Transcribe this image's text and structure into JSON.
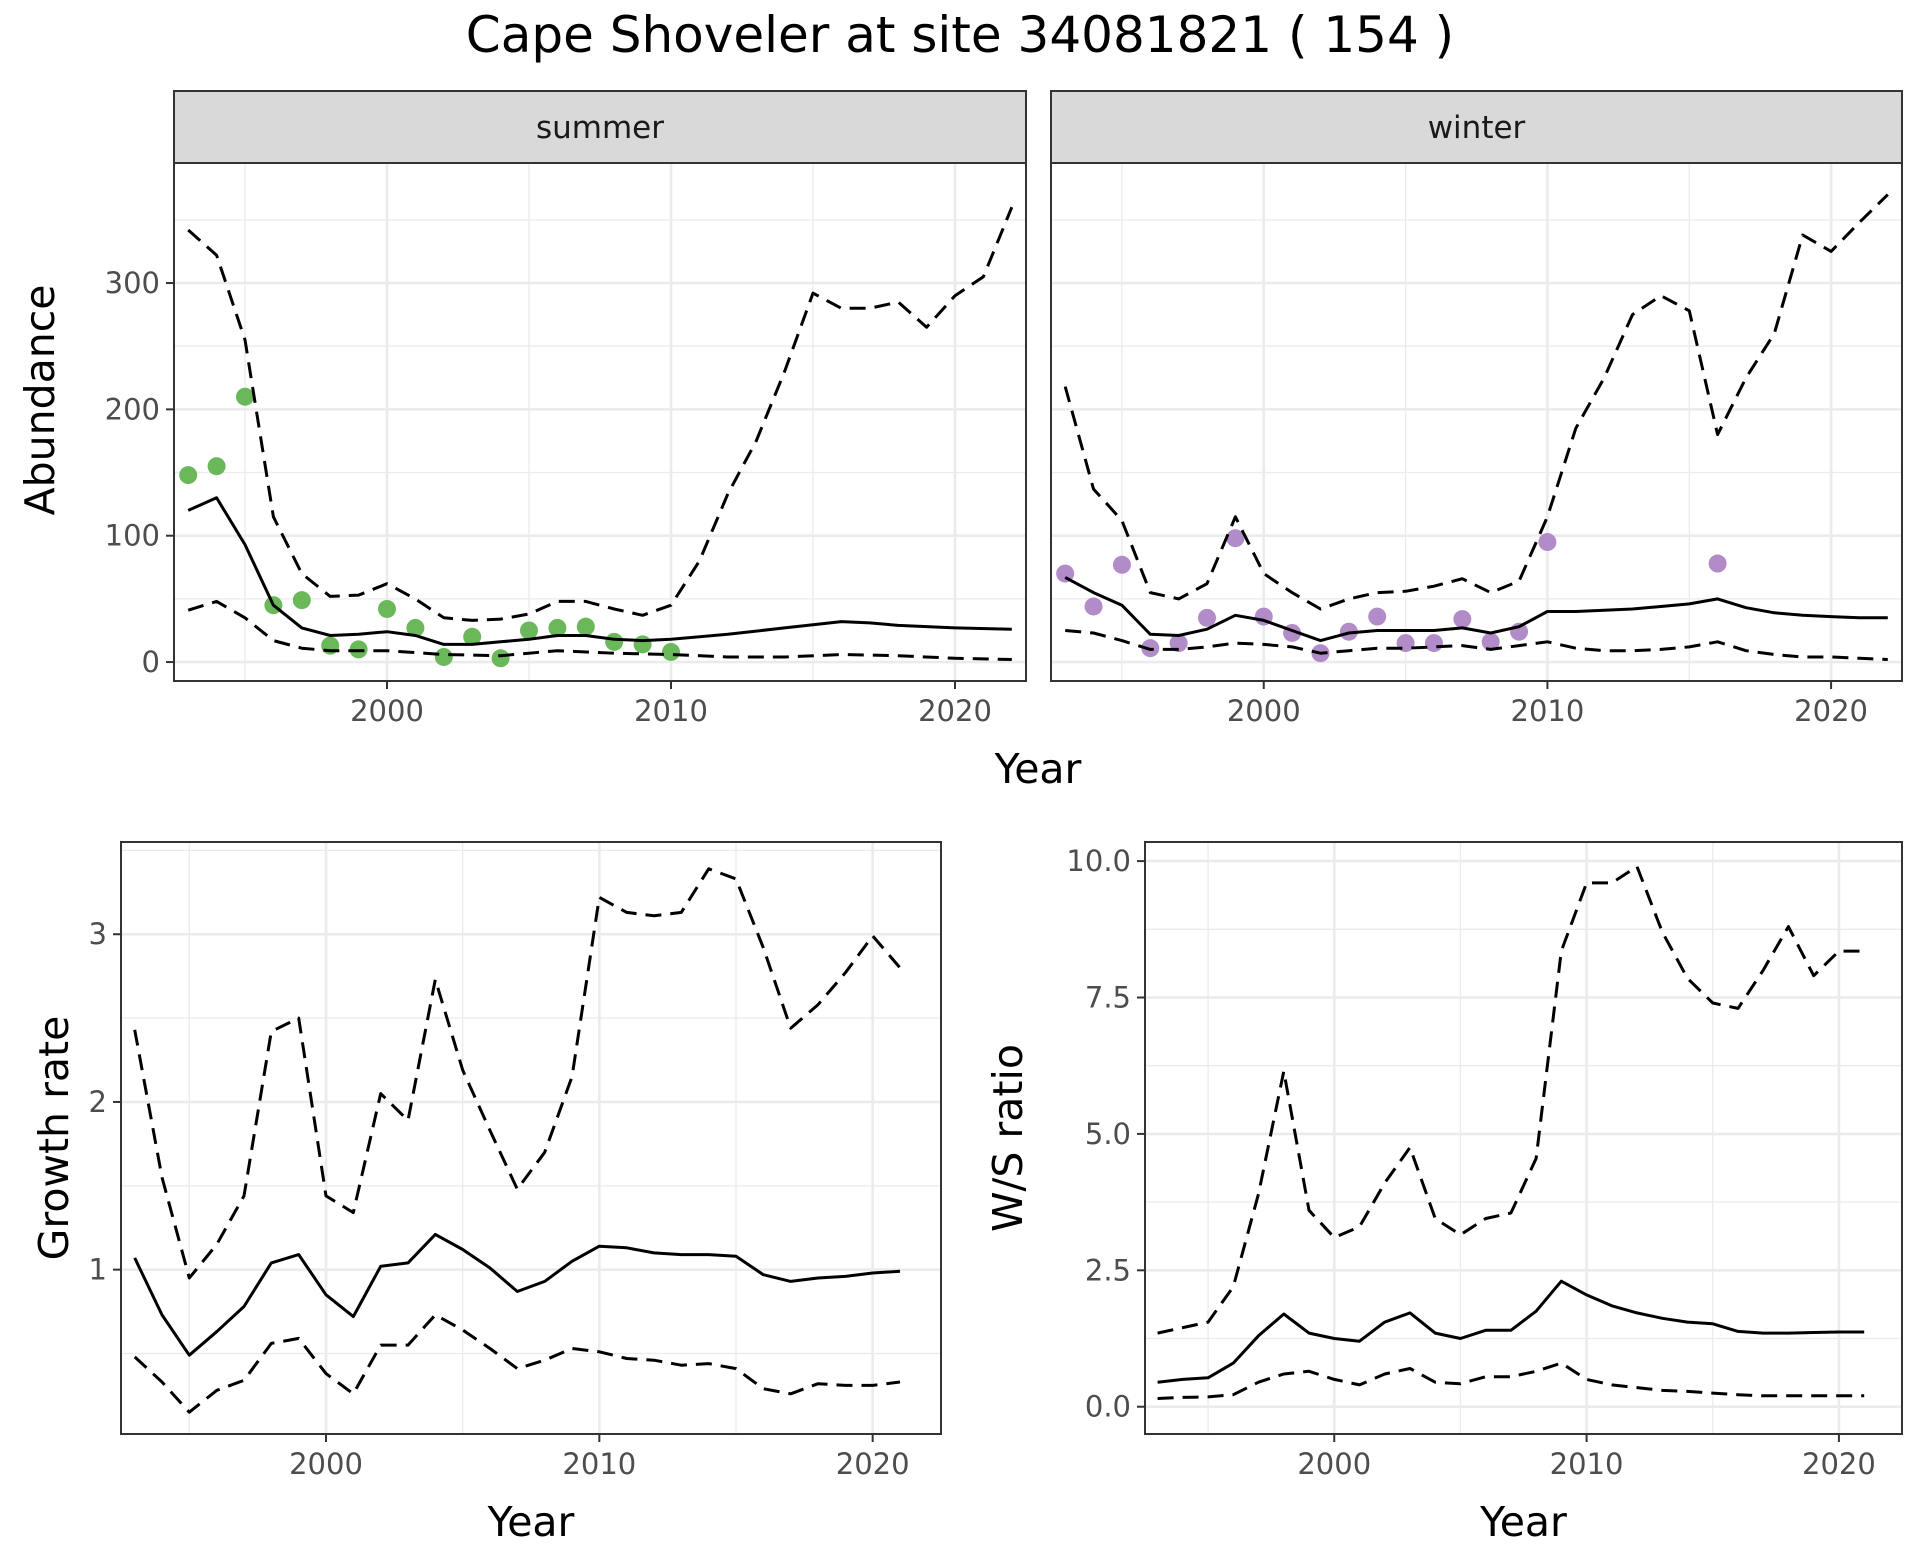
{
  "title": "Cape Shoveler at site 34081821 ( 154 )",
  "colors": {
    "summer_points": "#6ab85a",
    "winter_points": "#b28cc8",
    "line": "#000000",
    "strip_bg": "#d9d9d9",
    "grid": "#ebebeb"
  },
  "chart_data": [
    {
      "type": "scatter",
      "panel": "abundance",
      "facets": [
        "summer",
        "winter"
      ],
      "xlabel": "Year",
      "ylabel": "Abundance",
      "xlim": [
        1992.5,
        2022.5
      ],
      "ylim": [
        -15,
        395
      ],
      "xticks": [
        2000,
        2010,
        2020
      ],
      "yticks": [
        0,
        100,
        200,
        300
      ],
      "grid": true,
      "series": [
        {
          "facet": "summer",
          "kind": "points",
          "x": [
            1993,
            1994,
            1995,
            1996,
            1997,
            1998,
            1999,
            2000,
            2001,
            2002,
            2003,
            2004,
            2005,
            2006,
            2007,
            2008,
            2009,
            2010
          ],
          "y": [
            148,
            155,
            210,
            45,
            49,
            13,
            10,
            42,
            27,
            4,
            20,
            3,
            25,
            27,
            28,
            16,
            14,
            8
          ]
        },
        {
          "facet": "summer",
          "kind": "mean",
          "x": [
            1993,
            1994,
            1995,
            1996,
            1997,
            1998,
            1999,
            2000,
            2001,
            2002,
            2003,
            2004,
            2005,
            2006,
            2007,
            2008,
            2009,
            2010,
            2012,
            2014,
            2016,
            2017,
            2018,
            2020,
            2022
          ],
          "y": [
            120,
            130,
            93,
            45,
            27,
            21,
            22,
            24,
            21,
            14,
            14,
            16,
            18,
            21,
            21,
            18,
            17,
            18,
            22,
            27,
            32,
            31,
            29,
            27,
            26
          ]
        },
        {
          "facet": "summer",
          "kind": "upper",
          "x": [
            1993,
            1994,
            1995,
            1996,
            1997,
            1998,
            1999,
            2000,
            2001,
            2002,
            2003,
            2004,
            2005,
            2006,
            2007,
            2008,
            2009,
            2010,
            2011,
            2012,
            2013,
            2014,
            2015,
            2016,
            2017,
            2018,
            2019,
            2020,
            2021,
            2022
          ],
          "y": [
            342,
            322,
            255,
            115,
            70,
            52,
            53,
            62,
            50,
            35,
            33,
            34,
            38,
            48,
            48,
            42,
            37,
            45,
            80,
            133,
            175,
            230,
            292,
            280,
            280,
            285,
            265,
            290,
            305,
            360
          ]
        },
        {
          "facet": "summer",
          "kind": "lower",
          "x": [
            1993,
            1994,
            1995,
            1996,
            1997,
            1998,
            1999,
            2000,
            2002,
            2004,
            2006,
            2008,
            2010,
            2012,
            2014,
            2016,
            2018,
            2020,
            2022
          ],
          "y": [
            41,
            48,
            35,
            17,
            11,
            9,
            9,
            9,
            6,
            5,
            9,
            7,
            6,
            4,
            4,
            6,
            5,
            3,
            2
          ]
        },
        {
          "facet": "winter",
          "kind": "points",
          "x": [
            1993,
            1994,
            1995,
            1996,
            1997,
            1998,
            1999,
            2000,
            2001,
            2002,
            2003,
            2004,
            2005,
            2006,
            2007,
            2008,
            2009,
            2010,
            2016
          ],
          "y": [
            70,
            44,
            77,
            11,
            15,
            35,
            98,
            36,
            23,
            7,
            24,
            36,
            15,
            15,
            34,
            16,
            24,
            95,
            78
          ]
        },
        {
          "facet": "winter",
          "kind": "mean",
          "x": [
            1993,
            1994,
            1995,
            1996,
            1997,
            1998,
            1999,
            2000,
            2001,
            2002,
            2003,
            2004,
            2005,
            2006,
            2007,
            2008,
            2009,
            2010,
            2011,
            2012,
            2013,
            2014,
            2015,
            2016,
            2017,
            2018,
            2019,
            2020,
            2021,
            2022
          ],
          "y": [
            67,
            55,
            45,
            22,
            21,
            26,
            37,
            33,
            25,
            17,
            23,
            25,
            25,
            25,
            27,
            23,
            28,
            40,
            40,
            41,
            42,
            44,
            46,
            50,
            43,
            39,
            37,
            36,
            35,
            35
          ]
        },
        {
          "facet": "winter",
          "kind": "upper",
          "x": [
            1993,
            1994,
            1995,
            1996,
            1997,
            1998,
            1999,
            2000,
            2001,
            2002,
            2003,
            2004,
            2005,
            2006,
            2007,
            2008,
            2009,
            2010,
            2011,
            2012,
            2013,
            2014,
            2015,
            2016,
            2017,
            2018,
            2019,
            2020,
            2021,
            2022
          ],
          "y": [
            218,
            137,
            112,
            55,
            50,
            62,
            115,
            70,
            55,
            42,
            50,
            55,
            56,
            60,
            66,
            55,
            64,
            115,
            185,
            225,
            275,
            290,
            278,
            180,
            225,
            260,
            338,
            325,
            348,
            370
          ]
        },
        {
          "facet": "winter",
          "kind": "lower",
          "x": [
            1993,
            1994,
            1995,
            1996,
            1997,
            1998,
            1999,
            2000,
            2001,
            2002,
            2003,
            2004,
            2005,
            2006,
            2007,
            2008,
            2009,
            2010,
            2011,
            2012,
            2013,
            2014,
            2015,
            2016,
            2017,
            2018,
            2019,
            2020,
            2021,
            2022
          ],
          "y": [
            25,
            23,
            17,
            10,
            10,
            12,
            15,
            14,
            12,
            7,
            9,
            11,
            11,
            12,
            13,
            10,
            13,
            16,
            11,
            9,
            9,
            10,
            12,
            16,
            9,
            6,
            4,
            4,
            3,
            2
          ]
        }
      ]
    },
    {
      "type": "line",
      "panel": "growth",
      "xlabel": "Year",
      "ylabel": "Growth rate",
      "xlim": [
        1992.5,
        2022.5
      ],
      "ylim": [
        0.02,
        3.55
      ],
      "xticks": [
        2000,
        2010,
        2020
      ],
      "yticks": [
        1,
        2,
        3
      ],
      "grid": true,
      "series": [
        {
          "kind": "mean",
          "x": [
            1993,
            1994,
            1995,
            1996,
            1997,
            1998,
            1999,
            2000,
            2001,
            2002,
            2003,
            2004,
            2005,
            2006,
            2007,
            2008,
            2009,
            2010,
            2011,
            2012,
            2013,
            2014,
            2015,
            2016,
            2017,
            2018,
            2019,
            2020,
            2021
          ],
          "y": [
            1.07,
            0.73,
            0.49,
            0.63,
            0.78,
            1.04,
            1.09,
            0.85,
            0.72,
            1.02,
            1.04,
            1.21,
            1.12,
            1.01,
            0.87,
            0.93,
            1.05,
            1.14,
            1.13,
            1.1,
            1.09,
            1.09,
            1.08,
            0.97,
            0.93,
            0.95,
            0.96,
            0.98,
            0.99
          ]
        },
        {
          "kind": "upper",
          "x": [
            1993,
            1994,
            1995,
            1996,
            1997,
            1998,
            1999,
            2000,
            2001,
            2002,
            2003,
            2004,
            2005,
            2006,
            2007,
            2008,
            2009,
            2010,
            2011,
            2012,
            2013,
            2014,
            2015,
            2016,
            2017,
            2018,
            2019,
            2020,
            2021
          ],
          "y": [
            2.43,
            1.55,
            0.95,
            1.15,
            1.44,
            2.42,
            2.5,
            1.44,
            1.34,
            2.05,
            1.89,
            2.73,
            2.19,
            1.83,
            1.48,
            1.7,
            2.15,
            3.22,
            3.13,
            3.11,
            3.13,
            3.39,
            3.33,
            2.92,
            2.44,
            2.58,
            2.77,
            2.99,
            2.8
          ]
        },
        {
          "kind": "lower",
          "x": [
            1993,
            1994,
            1995,
            1996,
            1997,
            1998,
            1999,
            2000,
            2001,
            2002,
            2003,
            2004,
            2005,
            2006,
            2007,
            2008,
            2009,
            2010,
            2011,
            2012,
            2013,
            2014,
            2015,
            2016,
            2017,
            2018,
            2019,
            2020,
            2021
          ],
          "y": [
            0.48,
            0.33,
            0.15,
            0.28,
            0.34,
            0.56,
            0.59,
            0.38,
            0.26,
            0.55,
            0.55,
            0.73,
            0.64,
            0.53,
            0.41,
            0.46,
            0.53,
            0.51,
            0.47,
            0.46,
            0.43,
            0.44,
            0.41,
            0.29,
            0.26,
            0.32,
            0.31,
            0.31,
            0.33
          ]
        }
      ]
    },
    {
      "type": "line",
      "panel": "ratio",
      "xlabel": "Year",
      "ylabel": "W/S ratio",
      "xlim": [
        1992.5,
        2022.5
      ],
      "ylim": [
        -0.5,
        10.35
      ],
      "xticks": [
        2000,
        2010,
        2020
      ],
      "yticks": [
        0.0,
        2.5,
        5.0,
        7.5,
        10.0
      ],
      "ytick_labels": [
        "0.0",
        "2.5",
        "5.0",
        "7.5",
        "10.0"
      ],
      "grid": true,
      "series": [
        {
          "kind": "mean",
          "x": [
            1993,
            1994,
            1995,
            1996,
            1997,
            1998,
            1999,
            2000,
            2001,
            2002,
            2003,
            2004,
            2005,
            2006,
            2007,
            2008,
            2009,
            2010,
            2011,
            2012,
            2013,
            2014,
            2015,
            2016,
            2017,
            2018,
            2019,
            2020,
            2021
          ],
          "y": [
            0.45,
            0.5,
            0.53,
            0.8,
            1.3,
            1.7,
            1.35,
            1.25,
            1.2,
            1.55,
            1.72,
            1.35,
            1.25,
            1.4,
            1.4,
            1.75,
            2.3,
            2.05,
            1.85,
            1.72,
            1.62,
            1.55,
            1.52,
            1.38,
            1.35,
            1.35,
            1.36,
            1.37,
            1.37
          ]
        },
        {
          "kind": "upper",
          "x": [
            1993,
            1994,
            1995,
            1996,
            1997,
            1998,
            1999,
            2000,
            2001,
            2002,
            2003,
            2004,
            2005,
            2006,
            2007,
            2008,
            2009,
            2010,
            2011,
            2012,
            2013,
            2014,
            2015,
            2016,
            2017,
            2018,
            2019,
            2020,
            2021
          ],
          "y": [
            1.35,
            1.45,
            1.55,
            2.2,
            3.9,
            6.15,
            3.6,
            3.1,
            3.3,
            4.1,
            4.75,
            3.45,
            3.15,
            3.45,
            3.55,
            4.55,
            8.35,
            9.6,
            9.6,
            9.9,
            8.7,
            7.85,
            7.4,
            7.3,
            8.0,
            8.8,
            7.9,
            8.35,
            8.35
          ]
        },
        {
          "kind": "lower",
          "x": [
            1993,
            1994,
            1995,
            1996,
            1997,
            1998,
            1999,
            2000,
            2001,
            2002,
            2003,
            2004,
            2005,
            2006,
            2007,
            2008,
            2009,
            2010,
            2011,
            2012,
            2013,
            2014,
            2015,
            2016,
            2017,
            2018,
            2019,
            2020,
            2021
          ],
          "y": [
            0.15,
            0.17,
            0.18,
            0.22,
            0.45,
            0.6,
            0.65,
            0.5,
            0.4,
            0.6,
            0.7,
            0.45,
            0.42,
            0.55,
            0.55,
            0.65,
            0.8,
            0.5,
            0.4,
            0.35,
            0.3,
            0.28,
            0.25,
            0.22,
            0.2,
            0.2,
            0.2,
            0.2,
            0.2
          ]
        }
      ]
    }
  ]
}
